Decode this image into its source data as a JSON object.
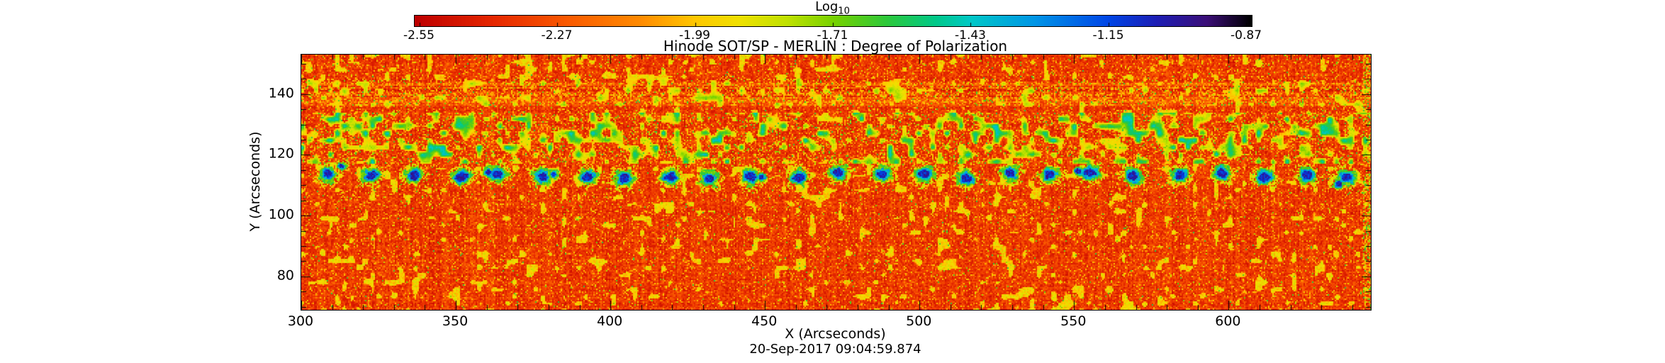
{
  "chart_data": {
    "type": "heatmap",
    "title": "Hinode SOT/SP - MERLIN : Degree of Polarization",
    "xlabel": "X (Arcseconds)",
    "ylabel": "Y (Arcseconds)",
    "date_label": "20-Sep-2017 09:04:59.874",
    "xlim": [
      300,
      646
    ],
    "ylim": [
      69,
      153
    ],
    "x_major_ticks": [
      300,
      350,
      400,
      450,
      500,
      550,
      600
    ],
    "x_minor_step": 10,
    "y_major_ticks": [
      80,
      100,
      120,
      140
    ],
    "y_minor_step": 5,
    "seed": 20170920,
    "colorbar": {
      "label_main": "Log",
      "label_sub": "10",
      "domain": [
        -2.56,
        -0.86
      ],
      "ticks": [
        -2.55,
        -2.27,
        -1.99,
        -1.71,
        -1.43,
        -1.15,
        -0.87
      ],
      "tick_labels": [
        "-2.55",
        "-2.27",
        "-1.99",
        "-1.71",
        "-1.43",
        "-1.15",
        "-0.87"
      ],
      "stops": [
        {
          "t": 0.0,
          "color": "#be0000"
        },
        {
          "t": 0.094,
          "color": "#e62800"
        },
        {
          "t": 0.182,
          "color": "#fa5a00"
        },
        {
          "t": 0.271,
          "color": "#ff8c00"
        },
        {
          "t": 0.335,
          "color": "#ffc800"
        },
        {
          "t": 0.388,
          "color": "#f0e100"
        },
        {
          "t": 0.447,
          "color": "#bee100"
        },
        {
          "t": 0.5,
          "color": "#78d200"
        },
        {
          "t": 0.565,
          "color": "#2dc83c"
        },
        {
          "t": 0.624,
          "color": "#00c88c"
        },
        {
          "t": 0.665,
          "color": "#00c8c8"
        },
        {
          "t": 0.741,
          "color": "#0096e6"
        },
        {
          "t": 0.829,
          "color": "#0046e6"
        },
        {
          "t": 0.888,
          "color": "#1e1eb4"
        },
        {
          "t": 0.947,
          "color": "#3c0f78"
        },
        {
          "t": 1.0,
          "color": "#000000"
        }
      ]
    },
    "field": {
      "background_range": [
        -2.47,
        -2.25
      ],
      "speckle_yellow_range": [
        -2.14,
        -1.94
      ],
      "speckle_green_range": [
        -1.88,
        -1.58
      ],
      "network_band_y": [
        117,
        134
      ],
      "plage_band_y": [
        136,
        145
      ],
      "quiet_below_y": 102
    },
    "features": {
      "pore_train": {
        "y_center": 113,
        "x_start": 309.5,
        "x_spacing": 13.7,
        "count": 25,
        "core_value": -1.05,
        "core_radius_arcsec": 1.6
      }
    },
    "frame_color": "#000000"
  }
}
